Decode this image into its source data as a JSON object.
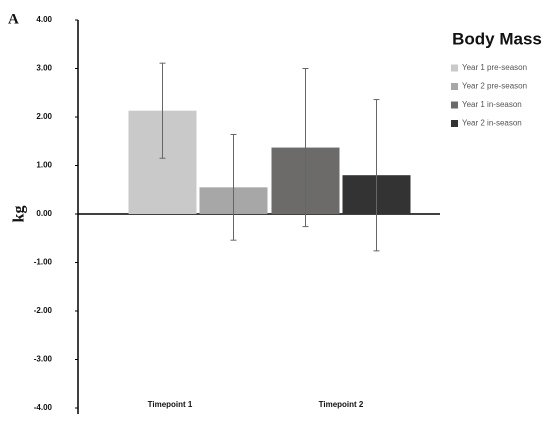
{
  "panel_label": "A",
  "chart_data": {
    "type": "bar",
    "title": "Body Mass",
    "y_label": "kg",
    "categories": [
      "Timepoint 1",
      "Timepoint 2"
    ],
    "series": [
      {
        "name": "Year 1 pre-season",
        "color": "#c9c9c9",
        "values": [
          2.13,
          null
        ],
        "errors": [
          0.98,
          null
        ]
      },
      {
        "name": "Year 2 pre-season",
        "color": "#a7a7a7",
        "values": [
          0.55,
          null
        ],
        "errors": [
          1.09,
          null
        ]
      },
      {
        "name": "Year 1 in-season",
        "color": "#6d6a6a",
        "values": [
          null,
          1.37
        ],
        "errors": [
          null,
          1.63
        ]
      },
      {
        "name": "Year 2 in-season",
        "color": "#333333",
        "values": [
          null,
          0.8
        ],
        "errors": [
          null,
          1.56
        ]
      }
    ],
    "ylim": [
      -4,
      4
    ],
    "yticks": [
      {
        "value": 4,
        "label": "4.00"
      },
      {
        "value": 3,
        "label": "3.00"
      },
      {
        "value": 2,
        "label": "2.00"
      },
      {
        "value": 1,
        "label": "1.00"
      },
      {
        "value": 0,
        "label": "0.00"
      },
      {
        "value": -1,
        "label": "-1.00"
      },
      {
        "value": -2,
        "label": "-2.00"
      },
      {
        "value": -3,
        "label": "-3.00"
      },
      {
        "value": -4,
        "label": "-4.00"
      }
    ],
    "legend": "upper right",
    "grid": false
  }
}
